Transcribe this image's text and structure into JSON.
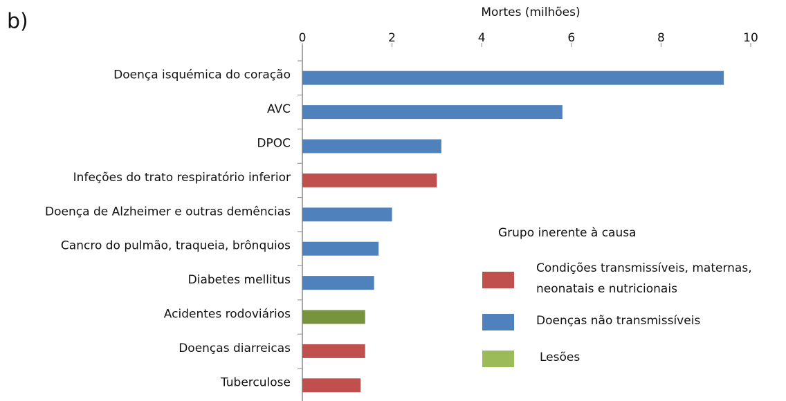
{
  "chart_data": {
    "type": "bar",
    "orientation": "horizontal",
    "panel_label": "b)",
    "xlabel": "Mortes (milhões)",
    "categories": [
      "Doença isquémica do coração",
      "AVC",
      "DPOC",
      "Infeções do trato respiratório inferior",
      "Doença de Alzheimer e outras demências",
      "Cancro do pulmão, traqueia, brônquios",
      "Diabetes mellitus",
      "Acidentes rodoviários",
      "Doenças diarreicas",
      "Tuberculose"
    ],
    "values": [
      9.4,
      5.8,
      3.1,
      3.0,
      2.0,
      1.7,
      1.6,
      1.4,
      1.4,
      1.3
    ],
    "colors": [
      "#4f81bd",
      "#4f81bd",
      "#4f81bd",
      "#c0504d",
      "#4f81bd",
      "#4f81bd",
      "#4f81bd",
      "#77933c",
      "#c0504d",
      "#c0504d"
    ],
    "xlim": [
      0,
      10
    ],
    "xticks": [
      0,
      2,
      4,
      6,
      8,
      10
    ],
    "legend": {
      "title": "Grupo inerente à causa",
      "items": [
        {
          "name": [
            "Condições transmissíveis, maternas,",
            "neonatais e nutricionais"
          ],
          "color": "#c0504d"
        },
        {
          "name": [
            "Doenças não transmissíveis"
          ],
          "color": "#4f81bd"
        },
        {
          "name": [
            "Lesões"
          ],
          "color": "#9bbb59"
        }
      ]
    }
  }
}
